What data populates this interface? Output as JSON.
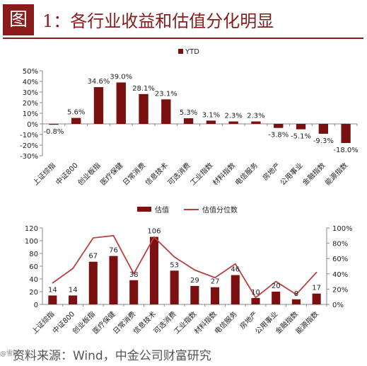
{
  "header": {
    "figure_label": "图",
    "title": "1：各行业收益和估值分化明显"
  },
  "colors": {
    "bar": "#7a1010",
    "line": "#b84040",
    "axis": "#888888",
    "accent": "#8b1a1a"
  },
  "chart_data": [
    {
      "type": "bar",
      "legend": [
        "YTD"
      ],
      "legend_position": "top-center",
      "categories": [
        "上证综指",
        "中证800",
        "创业板指",
        "医疗保健",
        "日常消费",
        "信息技术",
        "可选消费",
        "工业指数",
        "材料指数",
        "电信服务",
        "房地产",
        "公用事业",
        "金融指数",
        "能源指数"
      ],
      "series": [
        {
          "name": "YTD",
          "values": [
            -0.8,
            5.6,
            34.6,
            39.0,
            28.1,
            23.1,
            5.3,
            3.1,
            2.3,
            2.3,
            -3.8,
            -5.1,
            -9.3,
            -18.0
          ]
        }
      ],
      "data_labels": [
        "-0.8%",
        "5.6%",
        "34.6%",
        "39.0%",
        "28.1%",
        "23.1%",
        "5.3%",
        "3.1%",
        "2.3%",
        "2.3%",
        "-3.8%",
        "-5.1%",
        "-9.3%",
        "-18.0%"
      ],
      "ylim": [
        -30,
        50
      ],
      "y_ticks": [
        "50%",
        "40%",
        "30%",
        "20%",
        "10%",
        "0%",
        "-10%",
        "-20%",
        "-30%"
      ],
      "grid": false
    },
    {
      "type": "bar",
      "legend": [
        "估值",
        "估值分位数"
      ],
      "legend_position": "top-center",
      "categories": [
        "上证综指",
        "中证800",
        "创业板指",
        "医疗保健",
        "日常消费",
        "信息技术",
        "可选消费",
        "工业指数",
        "材料指数",
        "电信服务",
        "房地产",
        "公用事业",
        "金融指数",
        "能源指数"
      ],
      "series": [
        {
          "name": "估值",
          "type": "bar",
          "axis": "left",
          "values": [
            14,
            14,
            67,
            76,
            38,
            106,
            53,
            29,
            27,
            46,
            10,
            20,
            8,
            17
          ]
        },
        {
          "name": "估值分位数",
          "type": "line",
          "axis": "right",
          "values": [
            28,
            47,
            87,
            90,
            40,
            88,
            62,
            45,
            35,
            53,
            9,
            30,
            13,
            42
          ]
        }
      ],
      "data_labels": [
        "14",
        "14",
        "67",
        "76",
        "38",
        "106",
        "53",
        "29",
        "27",
        "46",
        "10",
        "20",
        "8",
        "17"
      ],
      "ylim": [
        0,
        120
      ],
      "y_ticks": [
        "120",
        "100",
        "80",
        "60",
        "40",
        "20",
        "0"
      ],
      "y2lim": [
        0,
        100
      ],
      "y2_ticks": [
        "100%",
        "80%",
        "60%",
        "40%",
        "20%",
        "0%"
      ],
      "grid": false
    }
  ],
  "footer": {
    "source": "资料来源：Wind，中金公司财富研究",
    "watermark": "@雪球"
  }
}
